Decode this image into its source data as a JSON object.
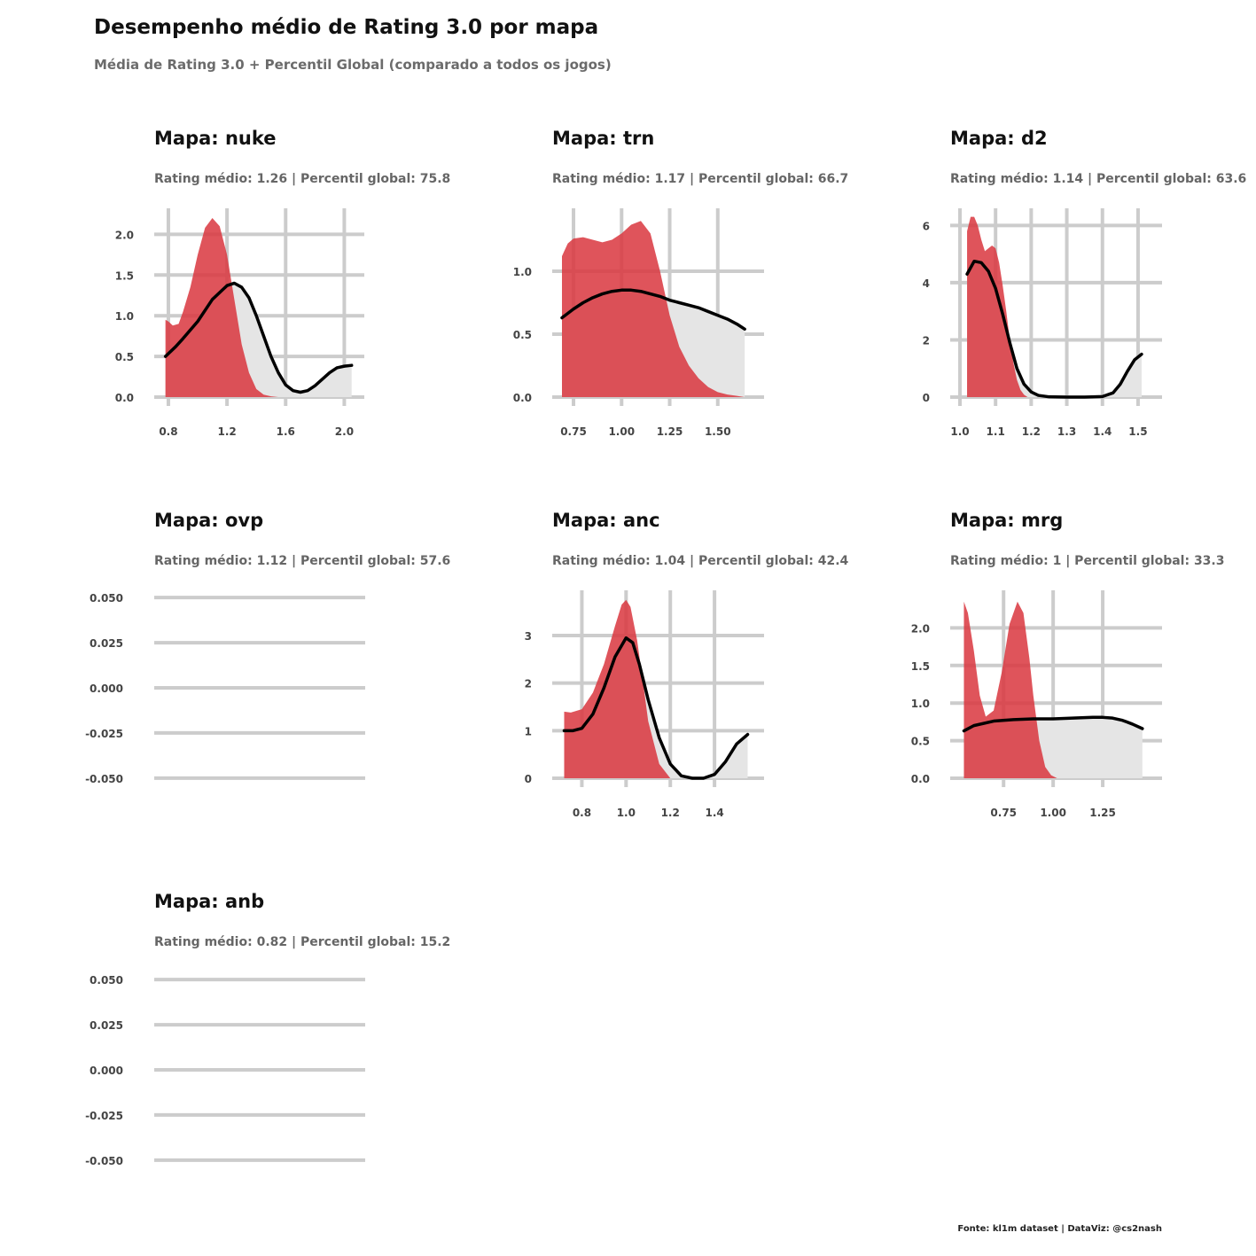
{
  "title": "Desempenho médio de Rating 3.0 por mapa",
  "subtitle": "Média de Rating 3.0 + Percentil Global (comparado a todos os jogos)",
  "caption": "Fonte: kl1m dataset  |  DataViz: @cs2nash",
  "colors": {
    "map_density": "#d9363e",
    "global_density": "#e5e5e5",
    "global_line": "#000000",
    "grid": "#cccccc",
    "title": "#111111",
    "subtitle": "#666666",
    "tick": "#444444"
  },
  "chart_data": [
    {
      "type": "area",
      "title": "Mapa: nuke",
      "subtitle": "Rating médio: 1.26 | Percentil global: 75.8",
      "xlim": [
        0.77,
        2.07
      ],
      "ylim": [
        0,
        2.32
      ],
      "xticks": [
        0.8,
        1.2,
        1.6,
        2.0
      ],
      "xtick_labels": [
        "0.8",
        "1.2",
        "1.6",
        "2.0"
      ],
      "yticks": [
        0,
        0.5,
        1.0,
        1.5,
        2.0
      ],
      "ytick_labels": [
        "0.0",
        "0.5",
        "1.0",
        "1.5",
        "2.0"
      ],
      "series": [
        {
          "x": [
            0.78,
            0.8,
            0.83,
            0.87,
            0.9,
            0.95,
            1.0,
            1.05,
            1.1,
            1.15,
            1.2,
            1.25,
            1.3,
            1.35,
            1.4,
            1.45,
            1.5,
            1.55
          ],
          "y": [
            0.95,
            0.93,
            0.88,
            0.9,
            1.05,
            1.35,
            1.75,
            2.08,
            2.2,
            2.1,
            1.75,
            1.2,
            0.65,
            0.3,
            0.1,
            0.03,
            0.01,
            0
          ]
        },
        {
          "x": [
            0.78,
            0.85,
            0.9,
            1.0,
            1.1,
            1.2,
            1.25,
            1.3,
            1.35,
            1.4,
            1.45,
            1.5,
            1.55,
            1.6,
            1.65,
            1.7,
            1.75,
            1.8,
            1.85,
            1.9,
            1.95,
            2.0,
            2.05
          ],
          "y": [
            0.5,
            0.62,
            0.72,
            0.93,
            1.2,
            1.37,
            1.4,
            1.35,
            1.22,
            1.0,
            0.75,
            0.5,
            0.3,
            0.15,
            0.08,
            0.06,
            0.08,
            0.14,
            0.22,
            0.3,
            0.36,
            0.38,
            0.39
          ]
        }
      ]
    },
    {
      "type": "area",
      "title": "Mapa: trn",
      "subtitle": "Rating médio: 1.17 | Percentil global: 66.7",
      "xlim": [
        0.69,
        1.69
      ],
      "ylim": [
        0,
        1.5
      ],
      "xticks": [
        0.75,
        1.0,
        1.25,
        1.5
      ],
      "xtick_labels": [
        "0.75",
        "1.00",
        "1.25",
        "1.50"
      ],
      "yticks": [
        0,
        0.5,
        1.0
      ],
      "ytick_labels": [
        "0.0",
        "0.5",
        "1.0"
      ],
      "series": [
        {
          "x": [
            0.69,
            0.72,
            0.75,
            0.8,
            0.85,
            0.9,
            0.95,
            1.0,
            1.05,
            1.1,
            1.15,
            1.2,
            1.25,
            1.3,
            1.35,
            1.4,
            1.45,
            1.5,
            1.55,
            1.6,
            1.64
          ],
          "y": [
            1.12,
            1.22,
            1.26,
            1.27,
            1.25,
            1.23,
            1.25,
            1.3,
            1.37,
            1.4,
            1.3,
            1.0,
            0.65,
            0.4,
            0.25,
            0.15,
            0.08,
            0.04,
            0.02,
            0.01,
            0
          ]
        },
        {
          "x": [
            0.69,
            0.75,
            0.8,
            0.85,
            0.9,
            0.95,
            1.0,
            1.05,
            1.1,
            1.15,
            1.2,
            1.25,
            1.3,
            1.35,
            1.4,
            1.45,
            1.5,
            1.55,
            1.6,
            1.64
          ],
          "y": [
            0.63,
            0.7,
            0.75,
            0.79,
            0.82,
            0.84,
            0.85,
            0.85,
            0.84,
            0.82,
            0.8,
            0.77,
            0.75,
            0.73,
            0.71,
            0.68,
            0.65,
            0.62,
            0.58,
            0.54
          ]
        }
      ]
    },
    {
      "type": "area",
      "title": "Mapa: d2",
      "subtitle": "Rating médio: 1.14 | Percentil global: 63.6",
      "xlim": [
        1.0,
        1.54
      ],
      "ylim": [
        0,
        6.6
      ],
      "xticks": [
        1.0,
        1.1,
        1.2,
        1.3,
        1.4,
        1.5
      ],
      "xtick_labels": [
        "1.0",
        "1.1",
        "1.2",
        "1.3",
        "1.4",
        "1.5"
      ],
      "yticks": [
        0,
        2,
        4,
        6
      ],
      "ytick_labels": [
        "0",
        "2",
        "4",
        "6"
      ],
      "series": [
        {
          "x": [
            1.02,
            1.03,
            1.04,
            1.05,
            1.06,
            1.07,
            1.08,
            1.09,
            1.1,
            1.11,
            1.12,
            1.13,
            1.14,
            1.15,
            1.16,
            1.17,
            1.18,
            1.19
          ],
          "y": [
            5.8,
            6.3,
            6.3,
            6.0,
            5.5,
            5.1,
            5.2,
            5.3,
            5.2,
            4.7,
            3.9,
            3.0,
            2.0,
            1.2,
            0.6,
            0.25,
            0.08,
            0
          ]
        },
        {
          "x": [
            1.02,
            1.04,
            1.06,
            1.08,
            1.1,
            1.12,
            1.14,
            1.16,
            1.18,
            1.2,
            1.22,
            1.25,
            1.3,
            1.35,
            1.4,
            1.43,
            1.45,
            1.47,
            1.49,
            1.51
          ],
          "y": [
            4.3,
            4.75,
            4.7,
            4.4,
            3.8,
            2.9,
            1.9,
            1.0,
            0.45,
            0.18,
            0.06,
            0.01,
            0,
            0,
            0.02,
            0.15,
            0.45,
            0.9,
            1.3,
            1.5
          ]
        }
      ]
    },
    {
      "type": "area",
      "title": "Mapa: ovp",
      "subtitle": "Rating médio: 1.12 | Percentil global: 57.6",
      "xlim": [
        0,
        1
      ],
      "ylim": [
        -0.055,
        0.055
      ],
      "xticks": [],
      "xtick_labels": [],
      "yticks": [
        -0.05,
        -0.025,
        0,
        0.025,
        0.05
      ],
      "ytick_labels": [
        "-0.050",
        "-0.025",
        "0.000",
        "0.025",
        "0.050"
      ],
      "series": []
    },
    {
      "type": "area",
      "title": "Mapa: anc",
      "subtitle": "Rating médio: 1.04 | Percentil global: 42.4",
      "xlim": [
        0.71,
        1.58
      ],
      "ylim": [
        0,
        3.95
      ],
      "xticks": [
        0.8,
        1.0,
        1.2,
        1.4
      ],
      "xtick_labels": [
        "0.8",
        "1.0",
        "1.2",
        "1.4"
      ],
      "yticks": [
        0,
        1,
        2,
        3
      ],
      "ytick_labels": [
        "0",
        "1",
        "2",
        "3"
      ],
      "series": [
        {
          "x": [
            0.72,
            0.75,
            0.8,
            0.85,
            0.9,
            0.95,
            0.98,
            1.0,
            1.02,
            1.05,
            1.08,
            1.1,
            1.15,
            1.2
          ],
          "y": [
            1.4,
            1.38,
            1.45,
            1.8,
            2.4,
            3.2,
            3.65,
            3.75,
            3.6,
            2.9,
            1.9,
            1.2,
            0.3,
            0
          ]
        },
        {
          "x": [
            0.72,
            0.76,
            0.8,
            0.85,
            0.9,
            0.95,
            1.0,
            1.03,
            1.06,
            1.1,
            1.15,
            1.2,
            1.25,
            1.3,
            1.35,
            1.4,
            1.45,
            1.5,
            1.55
          ],
          "y": [
            1.0,
            1.0,
            1.05,
            1.35,
            1.9,
            2.55,
            2.95,
            2.85,
            2.4,
            1.65,
            0.85,
            0.3,
            0.05,
            0,
            0,
            0.08,
            0.35,
            0.72,
            0.92
          ]
        }
      ]
    },
    {
      "type": "area",
      "title": "Mapa: mrg",
      "subtitle": "Rating médio: 1 | Percentil global: 33.3",
      "xlim": [
        0.53,
        1.5
      ],
      "ylim": [
        0,
        2.5
      ],
      "xticks": [
        0.75,
        1.0,
        1.25
      ],
      "xtick_labels": [
        "0.75",
        "1.00",
        "1.25"
      ],
      "yticks": [
        0,
        0.5,
        1.0,
        1.5,
        2.0
      ],
      "ytick_labels": [
        "0.0",
        "0.5",
        "1.0",
        "1.5",
        "2.0"
      ],
      "series": [
        {
          "x": [
            0.55,
            0.57,
            0.6,
            0.63,
            0.66,
            0.7,
            0.74,
            0.78,
            0.82,
            0.85,
            0.88,
            0.9,
            0.93,
            0.96,
            0.99,
            1.02
          ],
          "y": [
            2.35,
            2.2,
            1.7,
            1.1,
            0.82,
            0.9,
            1.4,
            2.05,
            2.35,
            2.2,
            1.6,
            1.1,
            0.5,
            0.15,
            0.04,
            0
          ]
        },
        {
          "x": [
            0.55,
            0.6,
            0.7,
            0.8,
            0.9,
            1.0,
            1.1,
            1.2,
            1.25,
            1.3,
            1.35,
            1.4,
            1.45
          ],
          "y": [
            0.63,
            0.7,
            0.76,
            0.78,
            0.79,
            0.79,
            0.8,
            0.81,
            0.81,
            0.8,
            0.77,
            0.72,
            0.66
          ]
        }
      ]
    },
    {
      "type": "area",
      "title": "Mapa: anb",
      "subtitle": "Rating médio: 0.82 | Percentil global: 15.2",
      "xlim": [
        0,
        1
      ],
      "ylim": [
        -0.055,
        0.055
      ],
      "xticks": [],
      "xtick_labels": [],
      "yticks": [
        -0.05,
        -0.025,
        0,
        0.025,
        0.05
      ],
      "ytick_labels": [
        "-0.050",
        "-0.025",
        "0.000",
        "0.025",
        "0.050"
      ],
      "series": []
    }
  ]
}
